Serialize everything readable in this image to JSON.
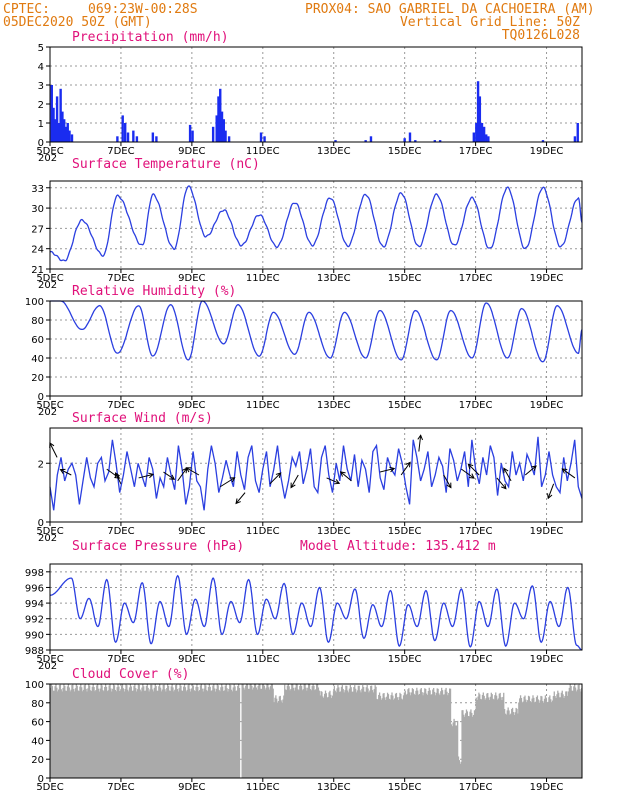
{
  "header": {
    "line1_left": "CPTEC:",
    "line1_coords": "069:23W-00:28S",
    "line1_right": "PROX04: SAO GABRIEL DA CACHOEIRA (AM)",
    "line2_left": "05DEC2020 50Z (GMT)",
    "line2_right": "Vertical Grid Line: 50Z",
    "line3_right": "TQ0126L028"
  },
  "x_ticks": [
    "5DEC",
    "7DEC",
    "9DEC",
    "11DEC",
    "13DEC",
    "15DEC",
    "17DEC",
    "19DEC"
  ],
  "x_tick_days": [
    0,
    2,
    4,
    6,
    8,
    10,
    12,
    14
  ],
  "x_range_days": [
    0,
    15
  ],
  "under_label": "202",
  "colors": {
    "line": "#2b3fe0",
    "bar": "#1a2cf0",
    "cloud": "#aaaaaa",
    "title": "#e0107a",
    "header": "#e07a10"
  },
  "chart_data": [
    {
      "id": "precip",
      "type": "bar",
      "title": "Precipitation (mm/h)",
      "ylim": [
        0,
        5
      ],
      "yticks": [
        "0",
        "1",
        "2",
        "3",
        "4",
        "5"
      ],
      "events": [
        {
          "day": 0.05,
          "value": 3.0
        },
        {
          "day": 0.1,
          "value": 1.8
        },
        {
          "day": 0.15,
          "value": 1.2
        },
        {
          "day": 0.2,
          "value": 2.4
        },
        {
          "day": 0.25,
          "value": 1.0
        },
        {
          "day": 0.3,
          "value": 2.8
        },
        {
          "day": 0.35,
          "value": 1.6
        },
        {
          "day": 0.4,
          "value": 1.2
        },
        {
          "day": 0.45,
          "value": 0.8
        },
        {
          "day": 0.5,
          "value": 1.0
        },
        {
          "day": 0.55,
          "value": 0.6
        },
        {
          "day": 0.62,
          "value": 0.4
        },
        {
          "day": 1.9,
          "value": 0.3
        },
        {
          "day": 2.05,
          "value": 1.4
        },
        {
          "day": 2.12,
          "value": 1.0
        },
        {
          "day": 2.2,
          "value": 0.5
        },
        {
          "day": 2.35,
          "value": 0.6
        },
        {
          "day": 2.45,
          "value": 0.3
        },
        {
          "day": 2.9,
          "value": 0.5
        },
        {
          "day": 3.0,
          "value": 0.3
        },
        {
          "day": 3.95,
          "value": 0.9
        },
        {
          "day": 4.02,
          "value": 0.6
        },
        {
          "day": 4.6,
          "value": 0.8
        },
        {
          "day": 4.7,
          "value": 1.4
        },
        {
          "day": 4.75,
          "value": 2.4
        },
        {
          "day": 4.8,
          "value": 2.8
        },
        {
          "day": 4.85,
          "value": 1.6
        },
        {
          "day": 4.9,
          "value": 1.2
        },
        {
          "day": 4.95,
          "value": 0.6
        },
        {
          "day": 5.05,
          "value": 0.3
        },
        {
          "day": 5.95,
          "value": 0.5
        },
        {
          "day": 6.05,
          "value": 0.3
        },
        {
          "day": 8.05,
          "value": 0.1
        },
        {
          "day": 8.9,
          "value": 0.1
        },
        {
          "day": 9.05,
          "value": 0.3
        },
        {
          "day": 10.0,
          "value": 0.2
        },
        {
          "day": 10.15,
          "value": 0.5
        },
        {
          "day": 10.3,
          "value": 0.1
        },
        {
          "day": 10.85,
          "value": 0.1
        },
        {
          "day": 11.0,
          "value": 0.1
        },
        {
          "day": 11.95,
          "value": 0.5
        },
        {
          "day": 12.02,
          "value": 1.0
        },
        {
          "day": 12.07,
          "value": 3.2
        },
        {
          "day": 12.12,
          "value": 2.4
        },
        {
          "day": 12.18,
          "value": 1.0
        },
        {
          "day": 12.24,
          "value": 0.8
        },
        {
          "day": 12.3,
          "value": 0.4
        },
        {
          "day": 12.36,
          "value": 0.3
        },
        {
          "day": 13.9,
          "value": 0.1
        },
        {
          "day": 14.8,
          "value": 0.3
        },
        {
          "day": 14.88,
          "value": 1.0
        }
      ]
    },
    {
      "id": "temp",
      "type": "line",
      "title": "Surface Temperature (nC)",
      "ylim": [
        21,
        34
      ],
      "yticks": [
        "21",
        "24",
        "27",
        "30",
        "33"
      ],
      "ytick_values": [
        21,
        24,
        27,
        30,
        33
      ],
      "min_days": [
        0.4,
        1.5,
        2.6,
        3.5,
        4.4,
        5.4,
        6.4,
        7.4,
        8.4,
        9.4,
        10.4,
        11.4,
        12.4,
        13.4,
        14.4
      ],
      "max_days": [
        0.9,
        1.9,
        2.9,
        3.9,
        4.9,
        5.9,
        6.9,
        7.9,
        8.9,
        9.9,
        10.9,
        11.9,
        12.9,
        13.9,
        14.9
      ],
      "mins": [
        22.2,
        23.0,
        24.5,
        24.0,
        25.8,
        24.5,
        24.3,
        24.5,
        24.4,
        24.3,
        24.3,
        24.5,
        24.0,
        24.0,
        24.3
      ],
      "maxs": [
        28.2,
        31.8,
        32.0,
        33.2,
        29.7,
        29.0,
        30.8,
        31.5,
        32.0,
        32.2,
        32.0,
        31.5,
        33.0,
        33.0,
        31.5
      ],
      "start": 23.5
    },
    {
      "id": "rh",
      "type": "line",
      "title": "Relative Humidity (%)",
      "ylim": [
        0,
        100
      ],
      "yticks": [
        "0",
        "20",
        "40",
        "60",
        "80",
        "100"
      ],
      "ytick_values": [
        0,
        20,
        40,
        60,
        80,
        100
      ],
      "min_days": [
        0.9,
        1.9,
        2.9,
        3.9,
        4.9,
        5.9,
        6.9,
        7.9,
        8.9,
        9.9,
        10.9,
        11.9,
        12.9,
        13.9,
        14.9
      ],
      "max_days": [
        0.3,
        1.4,
        2.5,
        3.4,
        4.3,
        5.3,
        6.3,
        7.3,
        8.3,
        9.3,
        10.3,
        11.3,
        12.3,
        13.3,
        14.3
      ],
      "mins": [
        70,
        45,
        42,
        38,
        55,
        42,
        44,
        40,
        40,
        38,
        38,
        40,
        40,
        36,
        45
      ],
      "maxs": [
        100,
        95,
        95,
        96,
        100,
        96,
        88,
        88,
        88,
        90,
        90,
        90,
        98,
        92,
        95
      ],
      "start": 100
    },
    {
      "id": "wind",
      "type": "line",
      "title": "Surface Wind (m/s)",
      "ylim": [
        0,
        3.2
      ],
      "yticks": [
        "0",
        "2"
      ],
      "ytick_values": [
        0,
        2
      ],
      "series_values": [
        1.2,
        0.4,
        1.6,
        2.2,
        1.4,
        1.8,
        2.0,
        1.6,
        0.6,
        1.4,
        2.2,
        1.5,
        1.2,
        2.0,
        2.2,
        1.4,
        1.7,
        2.8,
        2.0,
        1.0,
        1.6,
        2.4,
        1.8,
        1.2,
        2.0,
        1.6,
        1.2,
        2.2,
        1.8,
        0.8,
        1.5,
        1.2,
        2.2,
        1.6,
        1.1,
        2.6,
        1.8,
        0.6,
        1.2,
        2.4,
        1.4,
        1.2,
        0.4,
        1.8,
        2.6,
        2.0,
        1.0,
        1.5,
        2.1,
        1.6,
        1.2,
        2.4,
        1.6,
        1.1,
        2.2,
        2.6,
        1.4,
        1.0,
        1.8,
        2.4,
        1.2,
        1.8,
        2.6,
        1.5,
        0.8,
        1.4,
        2.2,
        1.9,
        2.4,
        1.3,
        1.8,
        2.5,
        1.2,
        1.0,
        2.2,
        2.6,
        1.6,
        1.0,
        2.0,
        1.4,
        2.6,
        1.8,
        1.4,
        2.3,
        1.2,
        2.1,
        1.8,
        1.0,
        2.4,
        2.6,
        1.5,
        1.1,
        2.2,
        1.8,
        1.6,
        2.5,
        2.0,
        1.2,
        0.6,
        2.8,
        2.2,
        1.4,
        1.8,
        2.4,
        1.2,
        1.6,
        2.2,
        1.9,
        1.0,
        2.5,
        2.1,
        1.4,
        1.8,
        2.4,
        1.2,
        2.8,
        1.8,
        1.3,
        2.2,
        1.6,
        2.6,
        2.2,
        0.9,
        2.0,
        1.4,
        1.2,
        2.4,
        1.6,
        2.0,
        1.4,
        2.3,
        2.0,
        1.6,
        2.9,
        1.2,
        1.6,
        2.4,
        1.6,
        1.2,
        1.0,
        2.2,
        1.4,
        2.0,
        2.8,
        1.2,
        0.8
      ],
      "arrows": [
        {
          "day": 0.2,
          "speed": 2.2,
          "u": -0.4,
          "v": 0.8
        },
        {
          "day": 0.6,
          "speed": 1.6,
          "u": -0.6,
          "v": 0.3
        },
        {
          "day": 1.6,
          "speed": 1.8,
          "u": 0.7,
          "v": -0.5
        },
        {
          "day": 2.0,
          "speed": 1.3,
          "u": -0.3,
          "v": 0.6
        },
        {
          "day": 2.5,
          "speed": 1.5,
          "u": 0.8,
          "v": 0.2
        },
        {
          "day": 3.2,
          "speed": 1.7,
          "u": 0.6,
          "v": -0.4
        },
        {
          "day": 3.6,
          "speed": 1.4,
          "u": 0.5,
          "v": 0.7
        },
        {
          "day": 4.2,
          "speed": 1.6,
          "u": -0.7,
          "v": 0.4
        },
        {
          "day": 4.8,
          "speed": 1.2,
          "u": 0.8,
          "v": 0.5
        },
        {
          "day": 5.5,
          "speed": 1.0,
          "u": -0.5,
          "v": -0.6
        },
        {
          "day": 6.2,
          "speed": 1.3,
          "u": 0.6,
          "v": 0.6
        },
        {
          "day": 7.0,
          "speed": 1.6,
          "u": -0.4,
          "v": -0.7
        },
        {
          "day": 7.8,
          "speed": 1.5,
          "u": 0.7,
          "v": -0.3
        },
        {
          "day": 8.5,
          "speed": 1.4,
          "u": -0.6,
          "v": 0.5
        },
        {
          "day": 9.3,
          "speed": 1.7,
          "u": 0.8,
          "v": 0.2
        },
        {
          "day": 9.9,
          "speed": 1.6,
          "u": 0.5,
          "v": 0.7
        },
        {
          "day": 10.4,
          "speed": 2.4,
          "u": 0.1,
          "v": 0.9
        },
        {
          "day": 11.1,
          "speed": 1.6,
          "u": 0.4,
          "v": -0.7
        },
        {
          "day": 11.6,
          "speed": 1.8,
          "u": 0.7,
          "v": -0.5
        },
        {
          "day": 12.1,
          "speed": 1.6,
          "u": -0.6,
          "v": 0.6
        },
        {
          "day": 12.6,
          "speed": 1.5,
          "u": 0.5,
          "v": -0.6
        },
        {
          "day": 13.0,
          "speed": 1.4,
          "u": -0.4,
          "v": 0.7
        },
        {
          "day": 13.4,
          "speed": 1.6,
          "u": 0.6,
          "v": 0.5
        },
        {
          "day": 14.2,
          "speed": 1.3,
          "u": -0.3,
          "v": -0.8
        },
        {
          "day": 14.8,
          "speed": 1.5,
          "u": -0.7,
          "v": 0.5
        }
      ]
    },
    {
      "id": "pres",
      "type": "line",
      "title": "Surface Pressure (hPa)",
      "annotation": "Model Altitude: 135.412 m",
      "ylim": [
        988,
        999
      ],
      "yticks": [
        "988",
        "990",
        "992",
        "994",
        "996",
        "998"
      ],
      "ytick_values": [
        988,
        990,
        992,
        994,
        996,
        998
      ],
      "semidiurnal": true,
      "max_days": [
        0.6,
        1.1,
        1.6,
        2.1,
        2.6,
        3.1,
        3.6,
        4.1,
        4.6,
        5.1,
        5.6,
        6.1,
        6.6,
        7.1,
        7.6,
        8.1,
        8.6,
        9.1,
        9.6,
        10.1,
        10.6,
        11.1,
        11.6,
        12.1,
        12.6,
        13.1,
        13.6,
        14.1,
        14.6
      ],
      "peaks": [
        997.2,
        994.6,
        997.0,
        994.0,
        996.6,
        994.2,
        997.5,
        994.5,
        997.2,
        994.2,
        997.0,
        994.5,
        996.5,
        994.0,
        996.0,
        994.0,
        995.8,
        993.8,
        995.6,
        993.8,
        995.6,
        994.0,
        995.8,
        994.2,
        995.8,
        994.0,
        996.2,
        994.2,
        996.0
      ],
      "troughs": [
        992.0,
        991.0,
        989.0,
        991.5,
        988.8,
        991.0,
        990.0,
        991.0,
        990.0,
        991.5,
        990.0,
        992.0,
        990.0,
        991.0,
        989.0,
        992.0,
        989.5,
        991.0,
        988.5,
        991.0,
        989.2,
        991.0,
        988.4,
        991.0,
        988.5,
        992.0,
        989.0,
        991.0,
        988.6,
        991.5
      ],
      "start": 995.0
    },
    {
      "id": "cloud",
      "type": "area",
      "title": "Cloud Cover (%)",
      "ylim": [
        0,
        100
      ],
      "yticks": [
        "0",
        "20",
        "40",
        "60",
        "80",
        "100"
      ],
      "ytick_values": [
        0,
        20,
        40,
        60,
        80,
        100
      ],
      "segments": [
        {
          "from": 0.0,
          "to": 5.35,
          "value": 97
        },
        {
          "from": 5.35,
          "to": 5.4,
          "value": 0
        },
        {
          "from": 5.4,
          "to": 6.3,
          "value": 99
        },
        {
          "from": 6.3,
          "to": 6.6,
          "value": 85
        },
        {
          "from": 6.6,
          "to": 7.6,
          "value": 98
        },
        {
          "from": 7.6,
          "to": 8.0,
          "value": 90
        },
        {
          "from": 8.0,
          "to": 9.2,
          "value": 96
        },
        {
          "from": 9.2,
          "to": 10.0,
          "value": 88
        },
        {
          "from": 10.0,
          "to": 11.3,
          "value": 93
        },
        {
          "from": 11.3,
          "to": 11.5,
          "value": 60
        },
        {
          "from": 11.5,
          "to": 11.6,
          "value": 20
        },
        {
          "from": 11.6,
          "to": 12.0,
          "value": 70
        },
        {
          "from": 12.0,
          "to": 12.8,
          "value": 88
        },
        {
          "from": 12.8,
          "to": 13.2,
          "value": 72
        },
        {
          "from": 13.2,
          "to": 14.2,
          "value": 85
        },
        {
          "from": 14.2,
          "to": 14.6,
          "value": 90
        },
        {
          "from": 14.6,
          "to": 15.0,
          "value": 97
        }
      ]
    }
  ]
}
